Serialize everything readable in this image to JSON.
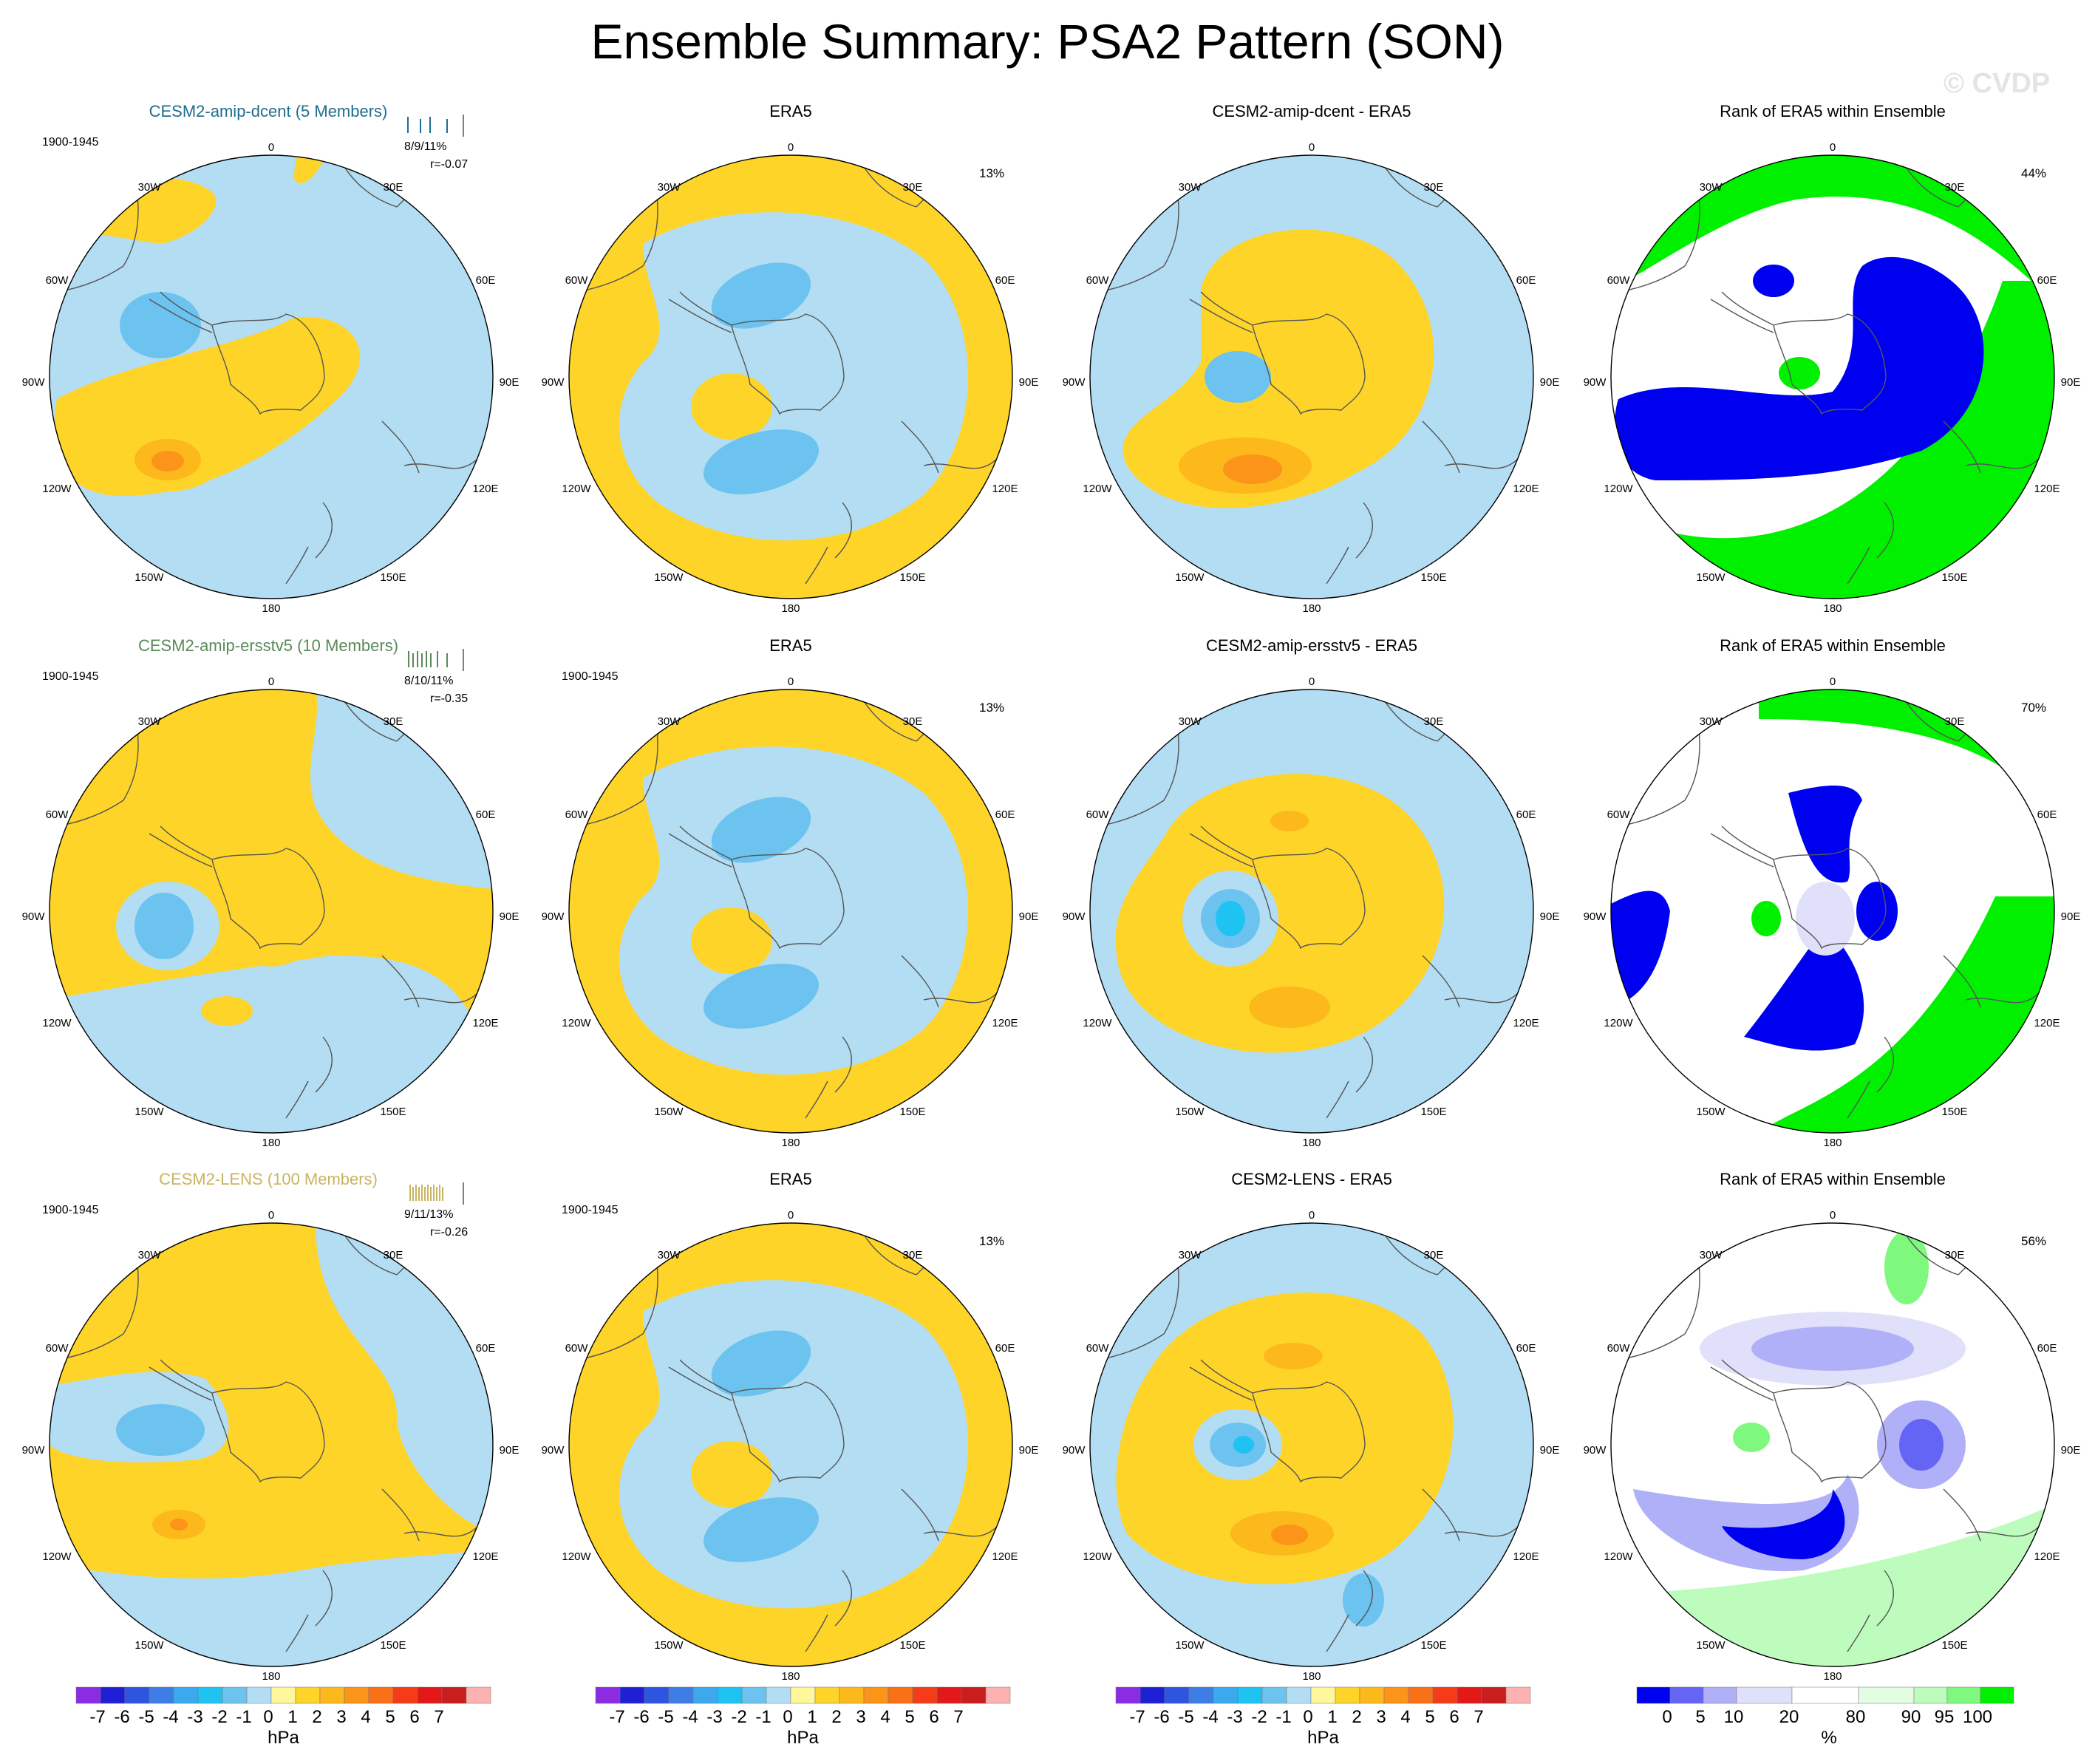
{
  "title": "Ensemble Summary: PSA2 Pattern (SON)",
  "watermark": "© CVDP",
  "lon_labels": {
    "n": "0",
    "nne": "30E",
    "ne": "60E",
    "e": "90E",
    "se": "120E",
    "sse": "150E",
    "s": "180",
    "ssw": "150W",
    "sw": "120W",
    "w": "90W",
    "nw": "60W",
    "nnw": "30W"
  },
  "colors": {
    "neg7": "#8b2be2",
    "neg6": "#1f1fd6",
    "neg5": "#2d55e0",
    "neg4": "#3c7ee6",
    "neg3": "#3ca8ee",
    "neg2": "#1fc3f2",
    "neg1": "#6cc3ef",
    "zero_neg": "#b3ddf2",
    "zero_pos": "#fef79c",
    "pos1": "#fed428",
    "pos2": "#fdb81c",
    "pos3": "#fb9418",
    "pos4": "#f97016",
    "pos5": "#f53b17",
    "pos6": "#e31919",
    "pos7": "#c81e1e",
    "pos8": "#feb1b1",
    "rank_blue": "#0000f0",
    "rank_med": "#6565f5",
    "rank_light": "#b0b0f8",
    "rank_pale": "#e0e0fa",
    "rank_gpale": "#e2fde2",
    "rank_glight": "#bdfcbd",
    "rank_gmed": "#7ef97e",
    "rank_green": "#00f000"
  },
  "chart_data": [
    {
      "type": "heatmap",
      "panel": "r1c1",
      "title": "CESM2-amip-dcent (5 Members)",
      "period": "1900-1945",
      "stats": "8/9/11%",
      "corr": "r=-0.07",
      "title_color": "#1f6d8f"
    },
    {
      "type": "heatmap",
      "panel": "r1c2",
      "title": "ERA5",
      "pct": "13%"
    },
    {
      "type": "heatmap",
      "panel": "r1c3",
      "title": "CESM2-amip-dcent - ERA5"
    },
    {
      "type": "heatmap",
      "panel": "r1c4",
      "title": "Rank of ERA5 within Ensemble",
      "pct": "44%"
    },
    {
      "type": "heatmap",
      "panel": "r2c1",
      "title": "CESM2-amip-ersstv5 (10 Members)",
      "period": "1900-1945",
      "stats": "8/10/11%",
      "corr": "r=-0.35",
      "title_color": "#5a8a5a"
    },
    {
      "type": "heatmap",
      "panel": "r2c2",
      "title": "ERA5",
      "period": "1900-1945",
      "pct": "13%"
    },
    {
      "type": "heatmap",
      "panel": "r2c3",
      "title": "CESM2-amip-ersstv5 - ERA5"
    },
    {
      "type": "heatmap",
      "panel": "r2c4",
      "title": "Rank of ERA5 within Ensemble",
      "pct": "70%"
    },
    {
      "type": "heatmap",
      "panel": "r3c1",
      "title": "CESM2-LENS (100 Members)",
      "period": "1900-1945",
      "stats": "9/11/13%",
      "corr": "r=-0.26",
      "title_color": "#c9b45f"
    },
    {
      "type": "heatmap",
      "panel": "r3c2",
      "title": "ERA5",
      "period": "1900-1945",
      "pct": "13%"
    },
    {
      "type": "heatmap",
      "panel": "r3c3",
      "title": "CESM2-LENS - ERA5"
    },
    {
      "type": "heatmap",
      "panel": "r3c4",
      "title": "Rank of ERA5 within Ensemble",
      "pct": "56%"
    }
  ],
  "colorbars": {
    "hpa": {
      "ticks": [
        "-7",
        "-6",
        "-5",
        "-4",
        "-3",
        "-2",
        "-1",
        "0",
        "1",
        "2",
        "3",
        "4",
        "5",
        "6",
        "7"
      ],
      "unit": "hPa"
    },
    "rank": {
      "ticks": [
        "0",
        "5",
        "10",
        "20",
        "80",
        "90",
        "95",
        "100"
      ],
      "unit": "%"
    }
  }
}
